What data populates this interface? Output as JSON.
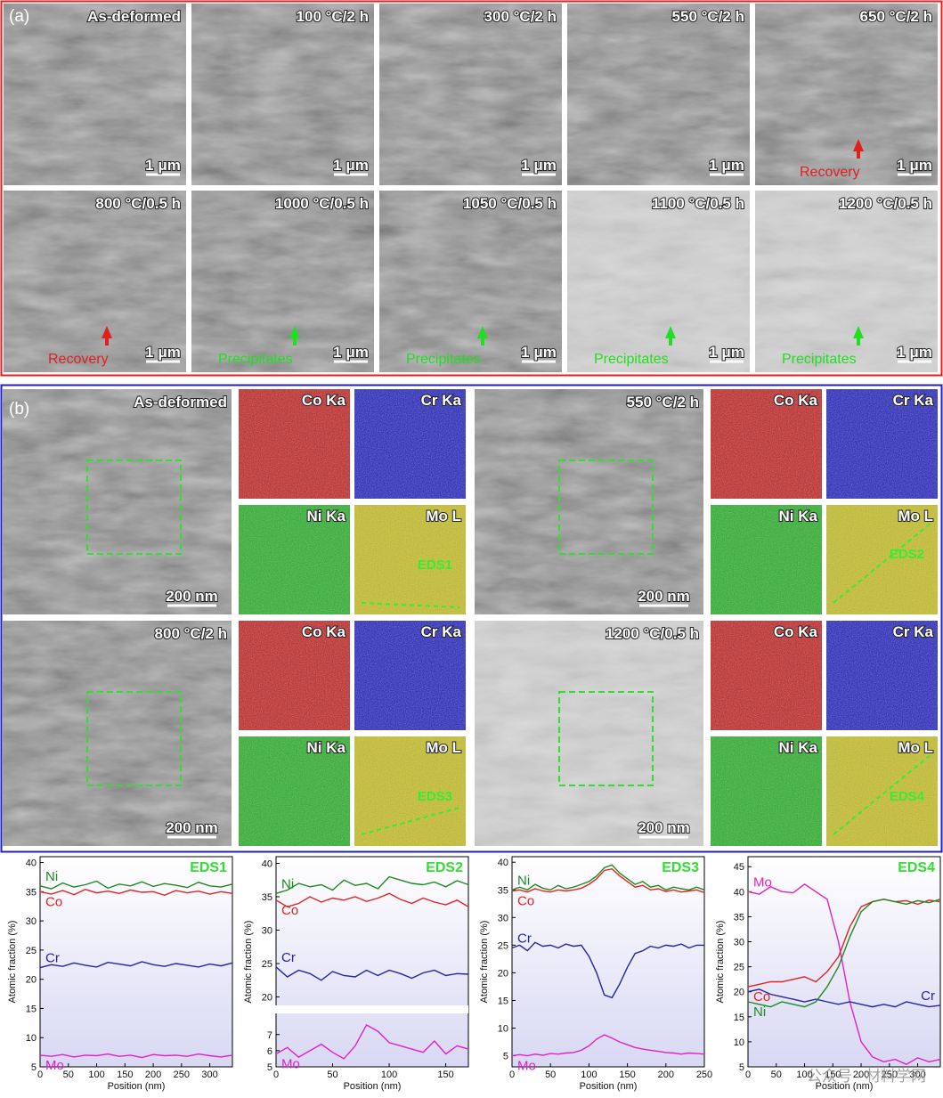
{
  "panel_a": {
    "label": "(a)",
    "images": [
      {
        "title": "As-deformed",
        "scale": "1 μm"
      },
      {
        "title": "100 °C/2 h",
        "scale": "1 μm"
      },
      {
        "title": "300 °C/2 h",
        "scale": "1 μm"
      },
      {
        "title": "550 °C/2 h",
        "scale": "1 μm"
      },
      {
        "title": "650 °C/2 h",
        "scale": "1 μm",
        "annotation": "Recovery"
      },
      {
        "title": "800 °C/0.5 h",
        "scale": "1 μm",
        "annotation": "Recovery"
      },
      {
        "title": "1000 °C/0.5 h",
        "scale": "1 μm",
        "annotation": "Precipitates"
      },
      {
        "title": "1050 °C/0.5 h",
        "scale": "1 μm",
        "annotation": "Precipitates"
      },
      {
        "title": "1100 °C/0.5 h",
        "scale": "1 μm",
        "annotation": "Precipitates"
      },
      {
        "title": "1200 °C/0.5 h",
        "scale": "1 μm",
        "annotation": "Precipitates"
      }
    ]
  },
  "panel_b": {
    "label": "(b)",
    "samples": [
      {
        "title": "As-deformed",
        "scale": "200 nm",
        "maps": [
          "Co Ka",
          "Cr Ka",
          "Ni Ka",
          "Mo L"
        ],
        "line": "EDS1"
      },
      {
        "title": "550 °C/2 h",
        "scale": "200 nm",
        "maps": [
          "Co Ka",
          "Cr Ka",
          "Ni Ka",
          "Mo L"
        ],
        "line": "EDS2"
      },
      {
        "title": "800 °C/2 h",
        "scale": "200 nm",
        "maps": [
          "Co Ka",
          "Cr Ka",
          "Ni Ka",
          "Mo L"
        ],
        "line": "EDS3"
      },
      {
        "title": "1200 °C/0.5 h",
        "scale": "200 nm",
        "maps": [
          "Co Ka",
          "Cr Ka",
          "Ni Ka",
          "Mo L"
        ],
        "line": "EDS4"
      }
    ]
  },
  "watermark": "公众号 · 材料学网",
  "chart_data": [
    {
      "type": "line",
      "title": "EDS1",
      "x_label": "Position (nm)",
      "y_label": "Atomic fraction (%)",
      "xlim": [
        0,
        340
      ],
      "xticks": [
        0,
        50,
        100,
        150,
        200,
        250,
        300
      ],
      "ylim": [
        5,
        41
      ],
      "yticks": [
        5,
        10,
        15,
        20,
        25,
        30,
        35,
        40
      ],
      "x": [
        0,
        20,
        40,
        60,
        80,
        100,
        120,
        140,
        160,
        180,
        200,
        220,
        240,
        260,
        280,
        300,
        320,
        340
      ],
      "series": [
        {
          "name": "Ni",
          "color": "#1f8a1f",
          "values": [
            36,
            35.5,
            36.5,
            35.8,
            36.2,
            36.8,
            35.6,
            36.3,
            36,
            36.7,
            35.9,
            36.4,
            36.1,
            35.7,
            36.6,
            36,
            35.8,
            36.3
          ]
        },
        {
          "name": "Co",
          "color": "#e02424",
          "values": [
            35,
            34.6,
            35.2,
            34.5,
            35.4,
            34.8,
            35.1,
            34.7,
            35.3,
            34.9,
            35,
            34.4,
            35.2,
            34.8,
            35.1,
            34.6,
            35,
            34.7
          ]
        },
        {
          "name": "Cr",
          "color": "#2323a8",
          "values": [
            22,
            22.5,
            22.2,
            22.8,
            22.4,
            22.1,
            22.9,
            22.6,
            22.3,
            23,
            22.5,
            22.2,
            22.7,
            22.4,
            22.1,
            22.6,
            22.3,
            22.8
          ]
        },
        {
          "name": "Mo",
          "color": "#e020c8",
          "values": [
            7,
            6.8,
            7.1,
            6.7,
            7,
            6.9,
            7.2,
            6.8,
            7,
            6.6,
            7.1,
            6.9,
            7,
            6.8,
            7.2,
            6.9,
            6.7,
            7
          ]
        }
      ]
    },
    {
      "type": "line",
      "title": "EDS2",
      "x_label": "Position (nm)",
      "y_label": "Atomic fraction (%)",
      "xlim": [
        0,
        170
      ],
      "xticks": [
        0,
        50,
        100,
        150
      ],
      "ylim": [
        19,
        41
      ],
      "yticks": [
        20,
        25,
        30,
        35,
        40
      ],
      "ylim_lower": [
        5,
        8.2
      ],
      "yticks_lower": [
        5,
        6,
        7
      ],
      "x": [
        0,
        10,
        20,
        30,
        40,
        50,
        60,
        70,
        80,
        90,
        100,
        110,
        120,
        130,
        140,
        150,
        160,
        170
      ],
      "series": [
        {
          "name": "Ni",
          "color": "#1f8a1f",
          "values": [
            35.5,
            36,
            37,
            36.5,
            36.8,
            36,
            37.5,
            36.7,
            37,
            36.2,
            38,
            37.5,
            37,
            36.8,
            37.2,
            36.5,
            37.4,
            36.8
          ]
        },
        {
          "name": "Co",
          "color": "#e02424",
          "values": [
            34.5,
            33.5,
            34,
            35,
            34.2,
            34.8,
            34.5,
            35,
            34.3,
            34.8,
            35.5,
            34.6,
            34,
            34.8,
            34.2,
            33.8,
            34.5,
            33.5
          ]
        },
        {
          "name": "Cr",
          "color": "#2323a8",
          "values": [
            24.5,
            23,
            24,
            23.5,
            22.5,
            23.8,
            23.2,
            23,
            24,
            23.2,
            24,
            23.5,
            22.8,
            23.6,
            24,
            23.2,
            23.5,
            23.4
          ]
        },
        {
          "name": "Mo",
          "color": "#e020c8",
          "axis": "lower",
          "values": [
            5.8,
            6.2,
            5.6,
            6,
            6.4,
            5.9,
            5.5,
            6.3,
            7.6,
            7.2,
            6.5,
            6.3,
            6.1,
            5.9,
            6.6,
            5.8,
            6.3,
            6.1
          ]
        }
      ]
    },
    {
      "type": "line",
      "title": "EDS3",
      "x_label": "Position (nm)",
      "y_label": "Atomic fraction (%)",
      "xlim": [
        0,
        250
      ],
      "xticks": [
        0,
        50,
        100,
        150,
        200,
        250
      ],
      "ylim": [
        3,
        41
      ],
      "yticks": [
        5,
        10,
        15,
        20,
        25,
        30,
        35,
        40
      ],
      "x": [
        0,
        10,
        20,
        30,
        40,
        50,
        60,
        70,
        80,
        90,
        100,
        110,
        120,
        130,
        140,
        150,
        160,
        170,
        180,
        190,
        200,
        210,
        220,
        230,
        240,
        250
      ],
      "series": [
        {
          "name": "Ni",
          "color": "#1f8a1f",
          "values": [
            35,
            35.5,
            35,
            36,
            35.3,
            35,
            35.8,
            35.2,
            35.5,
            36,
            36.5,
            37.5,
            39,
            39.5,
            38,
            37,
            36,
            36.5,
            35.5,
            35.8,
            35,
            35.5,
            35.2,
            35,
            35.5,
            35
          ]
        },
        {
          "name": "Co",
          "color": "#e02424",
          "values": [
            34.8,
            35,
            34.6,
            35.2,
            34.8,
            34.6,
            35,
            34.8,
            35,
            35.3,
            36,
            37,
            38.5,
            38.8,
            37.5,
            36.5,
            35.5,
            35.8,
            35,
            35.2,
            34.7,
            35,
            34.6,
            34.8,
            35,
            34.5
          ]
        },
        {
          "name": "Cr",
          "color": "#2323a8",
          "values": [
            24.5,
            25,
            24,
            25.5,
            24.8,
            25,
            24.5,
            25.2,
            24.8,
            25,
            23,
            20,
            16,
            15.5,
            18,
            21,
            23.5,
            24,
            24.8,
            24.5,
            25,
            24.8,
            25.2,
            24.5,
            25,
            25
          ]
        },
        {
          "name": "Mo",
          "color": "#e020c8",
          "values": [
            5,
            5.2,
            5,
            5.3,
            5.1,
            5.4,
            5.3,
            5.5,
            5.6,
            6,
            6.8,
            8,
            8.8,
            8.2,
            7.5,
            7,
            6.5,
            6.2,
            6,
            5.8,
            5.6,
            5.5,
            5.3,
            5.5,
            5.4,
            5.3
          ]
        }
      ]
    },
    {
      "type": "line",
      "title": "EDS4",
      "x_label": "Position (nm)",
      "y_label": "Atomic fraction (%)",
      "xlim": [
        0,
        340
      ],
      "xticks": [
        0,
        50,
        100,
        150,
        200,
        250,
        300
      ],
      "ylim": [
        5,
        47
      ],
      "yticks": [
        5,
        10,
        15,
        20,
        25,
        30,
        35,
        40,
        45
      ],
      "x": [
        0,
        20,
        40,
        60,
        80,
        100,
        120,
        140,
        160,
        180,
        200,
        220,
        240,
        260,
        280,
        300,
        320,
        340
      ],
      "series": [
        {
          "name": "Mo",
          "color": "#e020c8",
          "values": [
            40,
            39.5,
            41,
            40,
            39.8,
            41.5,
            40,
            38.5,
            30,
            18,
            10,
            7,
            6,
            6.5,
            5.5,
            6.8,
            6,
            6.5
          ]
        },
        {
          "name": "Co",
          "color": "#e02424",
          "values": [
            21,
            21.5,
            22,
            22,
            22.5,
            23,
            22,
            24,
            27,
            33,
            37,
            38,
            38.5,
            38,
            38.2,
            37.5,
            38.3,
            38
          ]
        },
        {
          "name": "Cr",
          "color": "#2323a8",
          "values": [
            20,
            20.5,
            19.5,
            19,
            18.5,
            18,
            18.5,
            18,
            17.5,
            18,
            17.5,
            17,
            17.5,
            17,
            18,
            17.5,
            17,
            17.3
          ]
        },
        {
          "name": "Ni",
          "color": "#1f8a1f",
          "values": [
            18,
            17.5,
            17,
            18,
            17.5,
            17,
            18,
            21,
            25,
            31,
            36,
            38,
            38.5,
            38,
            37.5,
            38.2,
            37.8,
            38.5
          ]
        }
      ]
    }
  ]
}
